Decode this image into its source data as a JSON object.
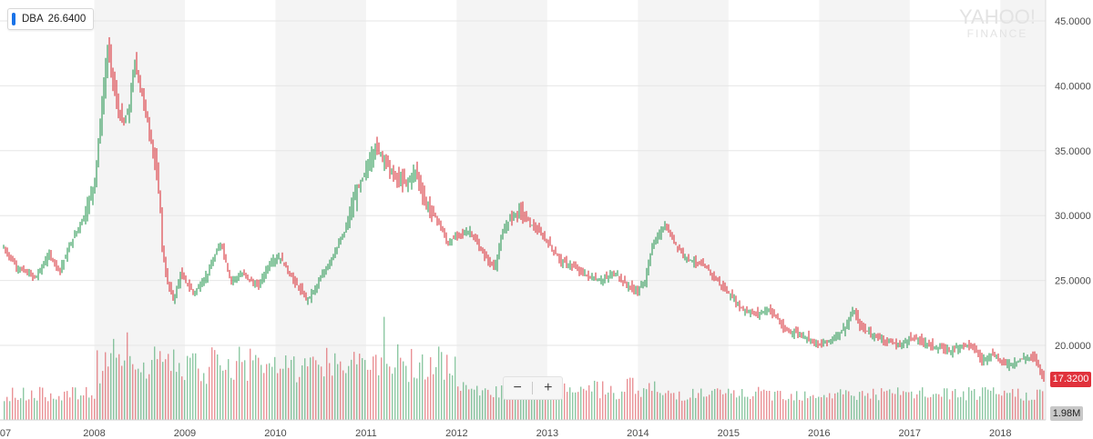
{
  "ticker": {
    "symbol": "DBA",
    "price": "26.6400"
  },
  "watermark": {
    "line1": "YAHOO!",
    "line2": "FINANCE"
  },
  "zoom": {
    "minus": "−",
    "plus": "+"
  },
  "last_price_tag": "17.3200",
  "volume_tag": "1.98M",
  "colors": {
    "up": "#2f9a57",
    "down": "#d9383f",
    "band": "#f4f4f4",
    "accent": "#1a73e8"
  },
  "chart_data": {
    "type": "line",
    "ylim": [
      15,
      46
    ],
    "xlim": [
      2007.0,
      2018.5
    ],
    "y_ticks": [
      "45.0000",
      "40.0000",
      "35.0000",
      "30.0000",
      "25.0000",
      "20.0000"
    ],
    "y_tick_values": [
      45,
      40,
      35,
      30,
      25,
      20
    ],
    "x_ticks": [
      "07",
      "2008",
      "2009",
      "2010",
      "2011",
      "2012",
      "2013",
      "2014",
      "2015",
      "2016",
      "2017",
      "2018"
    ],
    "x_tick_values": [
      2007.0,
      2008.0,
      2009.0,
      2010.0,
      2011.0,
      2012.0,
      2013.0,
      2014.0,
      2015.0,
      2016.0,
      2017.0,
      2018.0
    ],
    "series": [
      {
        "values": [
          [
            2007.0,
            27.5
          ],
          [
            2007.15,
            26.0
          ],
          [
            2007.35,
            25.2
          ],
          [
            2007.5,
            27.0
          ],
          [
            2007.62,
            25.8
          ],
          [
            2007.75,
            28.0
          ],
          [
            2007.9,
            30.2
          ],
          [
            2008.0,
            32.5
          ],
          [
            2008.08,
            38.0
          ],
          [
            2008.15,
            43.0
          ],
          [
            2008.25,
            38.5
          ],
          [
            2008.32,
            37.0
          ],
          [
            2008.38,
            38.0
          ],
          [
            2008.45,
            42.0
          ],
          [
            2008.52,
            39.5
          ],
          [
            2008.58,
            37.5
          ],
          [
            2008.65,
            35.0
          ],
          [
            2008.72,
            31.5
          ],
          [
            2008.75,
            27.5
          ],
          [
            2008.8,
            25.0
          ],
          [
            2008.88,
            23.5
          ],
          [
            2008.95,
            25.5
          ],
          [
            2009.1,
            24.0
          ],
          [
            2009.25,
            25.5
          ],
          [
            2009.4,
            28.0
          ],
          [
            2009.5,
            25.0
          ],
          [
            2009.65,
            25.5
          ],
          [
            2009.8,
            24.5
          ],
          [
            2009.95,
            26.5
          ],
          [
            2010.05,
            26.8
          ],
          [
            2010.2,
            25.0
          ],
          [
            2010.35,
            23.5
          ],
          [
            2010.45,
            24.5
          ],
          [
            2010.6,
            26.5
          ],
          [
            2010.75,
            28.5
          ],
          [
            2010.88,
            31.5
          ],
          [
            2011.0,
            33.5
          ],
          [
            2011.1,
            35.3
          ],
          [
            2011.2,
            34.5
          ],
          [
            2011.3,
            33.0
          ],
          [
            2011.45,
            32.5
          ],
          [
            2011.55,
            33.5
          ],
          [
            2011.65,
            31.0
          ],
          [
            2011.8,
            29.5
          ],
          [
            2011.9,
            27.8
          ],
          [
            2012.0,
            28.5
          ],
          [
            2012.15,
            28.8
          ],
          [
            2012.25,
            27.5
          ],
          [
            2012.35,
            26.5
          ],
          [
            2012.42,
            26.0
          ],
          [
            2012.5,
            28.5
          ],
          [
            2012.6,
            30.0
          ],
          [
            2012.7,
            30.4
          ],
          [
            2012.8,
            29.5
          ],
          [
            2012.9,
            28.8
          ],
          [
            2013.0,
            28.0
          ],
          [
            2013.15,
            26.5
          ],
          [
            2013.3,
            26.0
          ],
          [
            2013.45,
            25.3
          ],
          [
            2013.6,
            25.0
          ],
          [
            2013.75,
            25.6
          ],
          [
            2013.85,
            24.8
          ],
          [
            2013.95,
            24.3
          ],
          [
            2014.0,
            24.2
          ],
          [
            2014.08,
            25.0
          ],
          [
            2014.15,
            27.5
          ],
          [
            2014.25,
            28.8
          ],
          [
            2014.3,
            29.2
          ],
          [
            2014.4,
            28.0
          ],
          [
            2014.5,
            27.0
          ],
          [
            2014.6,
            26.5
          ],
          [
            2014.75,
            26.0
          ],
          [
            2014.9,
            24.8
          ],
          [
            2015.0,
            24.0
          ],
          [
            2015.15,
            22.8
          ],
          [
            2015.3,
            22.4
          ],
          [
            2015.45,
            22.8
          ],
          [
            2015.55,
            22.0
          ],
          [
            2015.6,
            21.2
          ],
          [
            2015.75,
            21.0
          ],
          [
            2015.9,
            20.5
          ],
          [
            2016.0,
            20.0
          ],
          [
            2016.15,
            20.5
          ],
          [
            2016.3,
            21.5
          ],
          [
            2016.38,
            22.7
          ],
          [
            2016.45,
            21.5
          ],
          [
            2016.6,
            20.8
          ],
          [
            2016.75,
            20.3
          ],
          [
            2016.9,
            20.0
          ],
          [
            2017.0,
            20.6
          ],
          [
            2017.15,
            20.3
          ],
          [
            2017.3,
            19.8
          ],
          [
            2017.45,
            19.6
          ],
          [
            2017.6,
            20.1
          ],
          [
            2017.7,
            19.9
          ],
          [
            2017.8,
            18.8
          ],
          [
            2017.9,
            19.4
          ],
          [
            2018.0,
            18.8
          ],
          [
            2018.1,
            18.5
          ],
          [
            2018.25,
            19.0
          ],
          [
            2018.38,
            19.1
          ],
          [
            2018.43,
            18.3
          ],
          [
            2018.48,
            17.4
          ]
        ]
      }
    ],
    "volume_spikes": [
      [
        2008.1,
        22.0
      ],
      [
        2008.2,
        20.5
      ],
      [
        2008.35,
        21.0
      ],
      [
        2011.18,
        22.2
      ],
      [
        2011.3,
        20.5
      ],
      [
        2010.85,
        19.5
      ],
      [
        2009.35,
        19.3
      ],
      [
        2012.55,
        17.6
      ],
      [
        2014.25,
        16.4
      ],
      [
        2016.42,
        15.8
      ]
    ]
  }
}
